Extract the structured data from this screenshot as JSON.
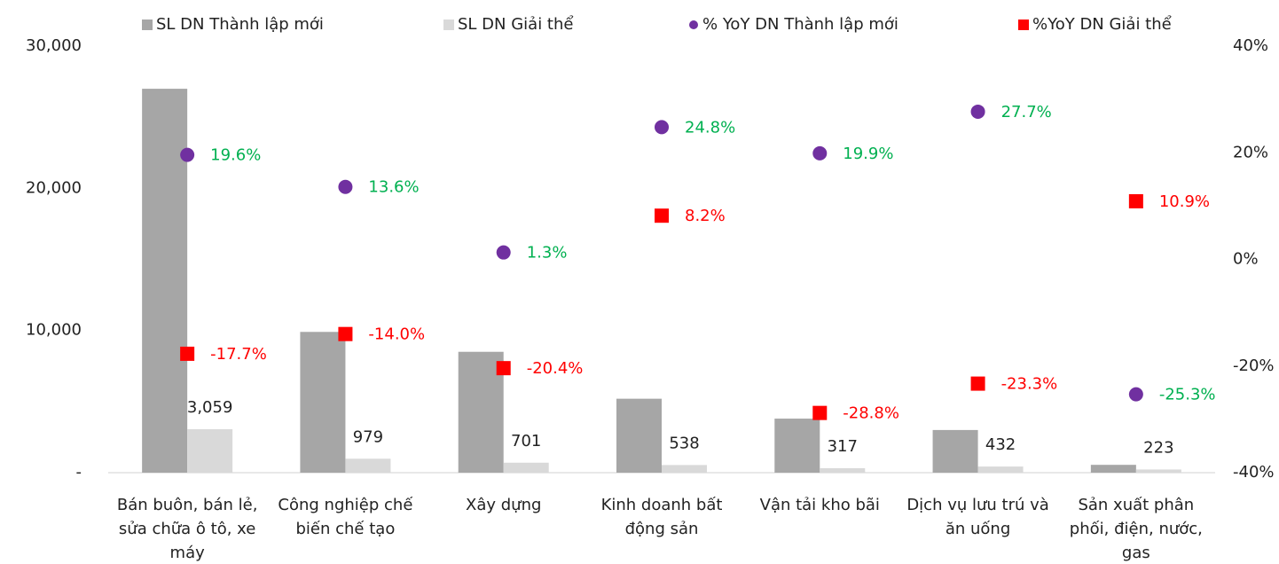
{
  "chart_data": {
    "type": "bar",
    "categories": [
      "Bán buôn, bán lẻ, sửa chữa ô tô, xe máy",
      "Công nghiệp chế biến chế tạo",
      "Xây dựng",
      "Kinh doanh bất động sản",
      "Vận tải kho bãi",
      "Dịch vụ lưu trú và ăn uống",
      "Sản xuất phân phối, điện, nước, gas"
    ],
    "series": [
      {
        "name": "SL DN Thành lập mới",
        "type": "bar",
        "color": "#a6a6a6",
        "values": [
          27000,
          9900,
          8500,
          5200,
          3800,
          3000,
          550
        ]
      },
      {
        "name": "SL DN Giải thể",
        "type": "bar",
        "color": "#d9d9d9",
        "values": [
          3059,
          979,
          701,
          538,
          317,
          432,
          223
        ],
        "value_labels": [
          "3,059",
          "979",
          "701",
          "538",
          "317",
          "432",
          "223"
        ]
      },
      {
        "name": "% YoY DN Thành lập mới",
        "type": "scatter",
        "marker": "circle",
        "axis": "y2",
        "color": "#7030a0",
        "label_color": "#00b050",
        "values": [
          19.6,
          13.6,
          1.3,
          24.8,
          19.9,
          27.7,
          -25.3
        ],
        "value_labels": [
          "19.6%",
          "13.6%",
          "1.3%",
          "24.8%",
          "19.9%",
          "27.7%",
          "-25.3%"
        ]
      },
      {
        "name": "%YoY DN Giải thể",
        "type": "scatter",
        "marker": "square",
        "axis": "y2",
        "color": "#ff0000",
        "label_color": "#ff0000",
        "values": [
          -17.7,
          -14.0,
          -20.4,
          8.2,
          -28.8,
          -23.3,
          10.9
        ],
        "value_labels": [
          "-17.7%",
          "-14.0%",
          "-20.4%",
          "8.2%",
          "-28.8%",
          "-23.3%",
          "10.9%"
        ]
      }
    ],
    "ylim": [
      0,
      30000
    ],
    "yticks": [
      {
        "value": 0,
        "label": "-"
      },
      {
        "value": 10000,
        "label": "10,000"
      },
      {
        "value": 20000,
        "label": "20,000"
      },
      {
        "value": 30000,
        "label": "30,000"
      }
    ],
    "y2lim": [
      -40,
      40
    ],
    "y2ticks": [
      {
        "value": -40,
        "label": "-40%"
      },
      {
        "value": -20,
        "label": "-20%"
      },
      {
        "value": 0,
        "label": "0%"
      },
      {
        "value": 20,
        "label": "20%"
      },
      {
        "value": 40,
        "label": "40%"
      }
    ],
    "grid": false
  }
}
